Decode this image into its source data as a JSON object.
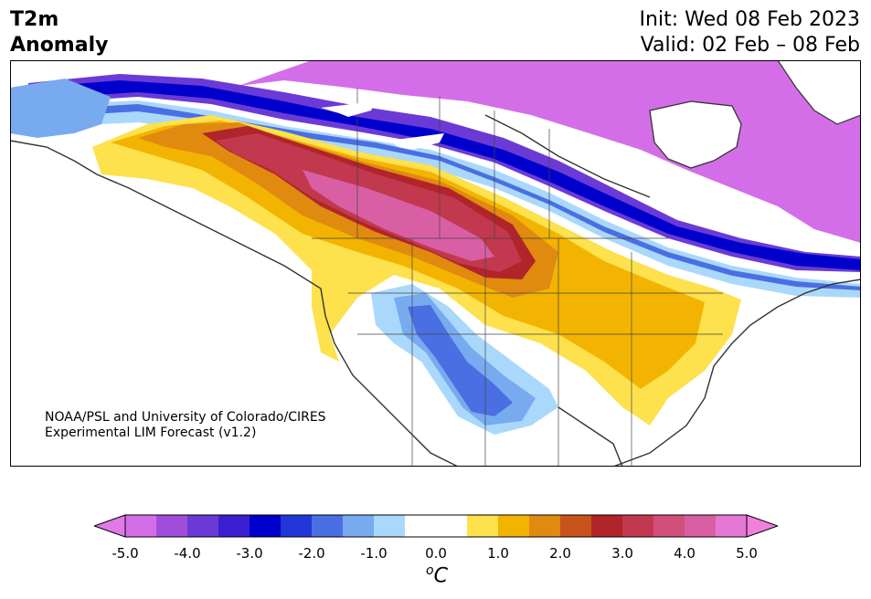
{
  "title": {
    "line1": "T2m",
    "line2": "Anomaly"
  },
  "dates": {
    "init": "Init: Wed 08 Feb 2023",
    "valid": "Valid: 02 Feb – 08 Feb"
  },
  "credit": {
    "line1": "NOAA/PSL and University of Colorado/CIRES",
    "line2": "Experimental LIM Forecast (v1.2)"
  },
  "colorbar": {
    "ticks": [
      "-5.0",
      "-4.0",
      "-3.0",
      "-2.0",
      "-1.0",
      "0.0",
      "1.0",
      "2.0",
      "3.0",
      "4.0",
      "5.0"
    ],
    "units_base": "C",
    "units_sup": "o",
    "colors": [
      "#d46ee8",
      "#a14ddb",
      "#6b3ad6",
      "#3b1fd0",
      "#0000cd",
      "#2336d8",
      "#4a6fe3",
      "#78aaf0",
      "#aad8fb",
      "#ffffff",
      "#ffffff",
      "#fde14d",
      "#f2b400",
      "#e08a10",
      "#c8541b",
      "#b0242a",
      "#c2384e",
      "#d14f7a",
      "#d95fa5",
      "#e578d5"
    ],
    "under_color": "#e07ae6",
    "over_color": "#f080dc"
  },
  "map_colors": {
    "land": "#ffffff",
    "coast": "#333333",
    "cold_extreme": "#d46ee8",
    "warm_extreme": "#d95fa5"
  }
}
